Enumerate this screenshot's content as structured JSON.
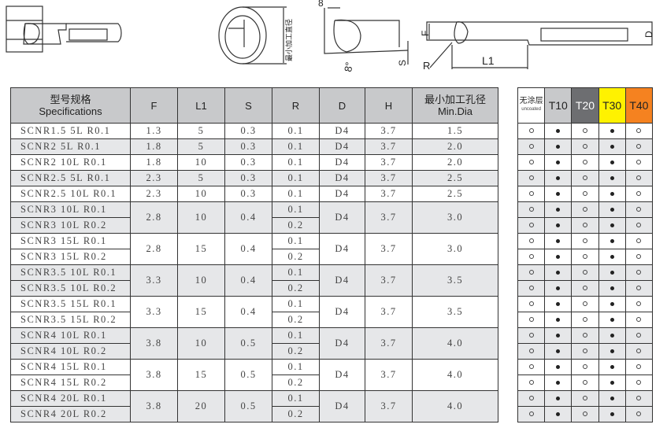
{
  "drawings": {
    "min_dia_label": "最小加工直径",
    "angle_label": "8°",
    "angle_top_label": "8",
    "s_label": "S",
    "f_label": "F",
    "d_label": "D",
    "r_label": "R",
    "l1_label": "L1"
  },
  "main_table": {
    "headers": {
      "spec_cn": "型号规格",
      "spec_en": "Specifications",
      "f": "F",
      "l1": "L1",
      "s": "S",
      "r": "R",
      "d": "D",
      "h": "H",
      "min_cn": "最小加工孔径",
      "min_en": "Min.Dia"
    },
    "groups": [
      {
        "specs": [
          "SCNR1.5 5L R0.1"
        ],
        "r": [
          "0.1"
        ],
        "f": "1.3",
        "l1": "5",
        "s": "0.3",
        "d": "D4",
        "h": "3.7",
        "min": "1.5"
      },
      {
        "specs": [
          "SCNR2 5L R0.1"
        ],
        "r": [
          "0.1"
        ],
        "f": "1.8",
        "l1": "5",
        "s": "0.3",
        "d": "D4",
        "h": "3.7",
        "min": "2.0"
      },
      {
        "specs": [
          "SCNR2 10L R0.1"
        ],
        "r": [
          "0.1"
        ],
        "f": "1.8",
        "l1": "10",
        "s": "0.3",
        "d": "D4",
        "h": "3.7",
        "min": "2.0"
      },
      {
        "specs": [
          "SCNR2.5 5L R0.1"
        ],
        "r": [
          "0.1"
        ],
        "f": "2.3",
        "l1": "5",
        "s": "0.3",
        "d": "D4",
        "h": "3.7",
        "min": "2.5"
      },
      {
        "specs": [
          "SCNR2.5 10L R0.1"
        ],
        "r": [
          "0.1"
        ],
        "f": "2.3",
        "l1": "10",
        "s": "0.3",
        "d": "D4",
        "h": "3.7",
        "min": "2.5"
      },
      {
        "specs": [
          "SCNR3 10L R0.1",
          "SCNR3 10L R0.2"
        ],
        "r": [
          "0.1",
          "0.2"
        ],
        "f": "2.8",
        "l1": "10",
        "s": "0.4",
        "d": "D4",
        "h": "3.7",
        "min": "3.0"
      },
      {
        "specs": [
          "SCNR3 15L R0.1",
          "SCNR3 15L R0.2"
        ],
        "r": [
          "0.1",
          "0.2"
        ],
        "f": "2.8",
        "l1": "15",
        "s": "0.4",
        "d": "D4",
        "h": "3.7",
        "min": "3.0"
      },
      {
        "specs": [
          "SCNR3.5 10L R0.1",
          "SCNR3.5 10L R0.2"
        ],
        "r": [
          "0.1",
          "0.2"
        ],
        "f": "3.3",
        "l1": "10",
        "s": "0.4",
        "d": "D4",
        "h": "3.7",
        "min": "3.5"
      },
      {
        "specs": [
          "SCNR3.5 15L R0.1",
          "SCNR3.5 15L R0.2"
        ],
        "r": [
          "0.1",
          "0.2"
        ],
        "f": "3.3",
        "l1": "15",
        "s": "0.4",
        "d": "D4",
        "h": "3.7",
        "min": "3.5"
      },
      {
        "specs": [
          "SCNR4 10L R0.1",
          "SCNR4 10L R0.2"
        ],
        "r": [
          "0.1",
          "0.2"
        ],
        "f": "3.8",
        "l1": "10",
        "s": "0.5",
        "d": "D4",
        "h": "3.7",
        "min": "4.0"
      },
      {
        "specs": [
          "SCNR4 15L R0.1",
          "SCNR4 15L R0.2"
        ],
        "r": [
          "0.1",
          "0.2"
        ],
        "f": "3.8",
        "l1": "15",
        "s": "0.5",
        "d": "D4",
        "h": "3.7",
        "min": "4.0"
      },
      {
        "specs": [
          "SCNR4 20L R0.1",
          "SCNR4 20L R0.2"
        ],
        "r": [
          "0.1",
          "0.2"
        ],
        "f": "3.8",
        "l1": "20",
        "s": "0.5",
        "d": "D4",
        "h": "3.7",
        "min": "4.0"
      }
    ]
  },
  "coating_table": {
    "headers": [
      {
        "label": "无涂层",
        "sub": "uncoated",
        "color": "#ffffff",
        "text": "#222222"
      },
      {
        "label": "T10",
        "color": "#c8c9cb",
        "text": "#222222"
      },
      {
        "label": "T20",
        "color": "#6d6e71",
        "text": "#ffffff"
      },
      {
        "label": "T30",
        "color": "#fff200",
        "text": "#222222"
      },
      {
        "label": "T40",
        "color": "#f58220",
        "text": "#222222"
      }
    ],
    "row_pattern": [
      "open",
      "filled",
      "open",
      "filled",
      "open"
    ],
    "row_count": 19
  }
}
